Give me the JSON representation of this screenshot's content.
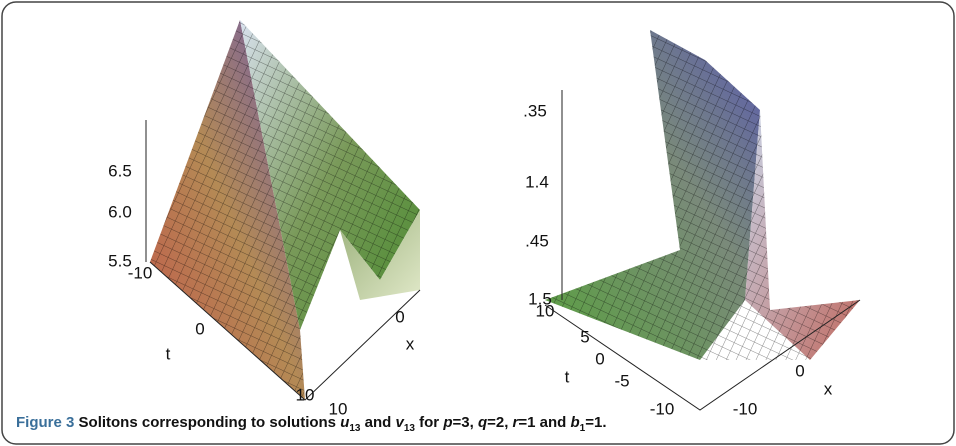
{
  "figure": {
    "panels": [
      {
        "ticks": [
          {
            "text": "6.5",
            "x": 0,
            "y": 0
          },
          {
            "text": "6.0"
          },
          {
            "text": "5.5"
          },
          {
            "text": "-10"
          },
          {
            "text": "0"
          },
          {
            "text": "t"
          },
          {
            "text": "10"
          },
          {
            "text": "10"
          },
          {
            "text": "0"
          },
          {
            "text": "x"
          }
        ]
      },
      {
        "ticks": [
          {
            "text": ".35"
          },
          {
            "text": "1.4"
          },
          {
            "text": ".45"
          },
          {
            "text": "1.5"
          },
          {
            "text": "10"
          },
          {
            "text": "5"
          },
          {
            "text": "0"
          },
          {
            "text": "t"
          },
          {
            "text": "-5"
          },
          {
            "text": "-10"
          },
          {
            "text": "-10"
          },
          {
            "text": "0"
          },
          {
            "text": "x"
          }
        ]
      }
    ],
    "caption": {
      "label": "Figure 3",
      "parts": [
        " Solitons corresponding to solutions ",
        "u",
        "13",
        " and ",
        "v",
        "13",
        " for ",
        "p",
        "=3, ",
        "q",
        "=2, ",
        "r",
        "=1 and ",
        "b",
        "1",
        "=1."
      ]
    }
  }
}
